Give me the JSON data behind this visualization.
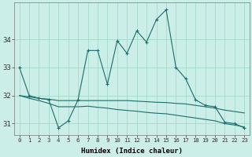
{
  "xlabel": "Humidex (Indice chaleur)",
  "background_color": "#cceee8",
  "grid_color": "#aaddcc",
  "line_color": "#1a6e6e",
  "hours": [
    0,
    1,
    2,
    3,
    4,
    5,
    6,
    7,
    8,
    9,
    10,
    11,
    12,
    13,
    14,
    15,
    16,
    17,
    18,
    19,
    20,
    21,
    22,
    23
  ],
  "y_main": [
    33.0,
    32.0,
    31.9,
    31.85,
    30.85,
    31.1,
    31.85,
    33.6,
    33.6,
    32.4,
    33.95,
    33.5,
    34.3,
    33.9,
    34.7,
    35.05,
    33.0,
    32.6,
    31.85,
    31.65,
    31.6,
    31.05,
    31.0,
    30.85
  ],
  "y_upper": [
    32.0,
    31.95,
    31.9,
    31.87,
    31.82,
    31.82,
    31.82,
    31.82,
    31.82,
    31.82,
    31.82,
    31.82,
    31.8,
    31.78,
    31.76,
    31.75,
    31.72,
    31.7,
    31.65,
    31.6,
    31.55,
    31.48,
    31.43,
    31.38
  ],
  "y_lower": [
    32.0,
    31.9,
    31.82,
    31.72,
    31.6,
    31.6,
    31.6,
    31.62,
    31.58,
    31.55,
    31.5,
    31.47,
    31.44,
    31.4,
    31.37,
    31.35,
    31.3,
    31.25,
    31.2,
    31.15,
    31.1,
    31.0,
    30.95,
    30.88
  ],
  "ylim": [
    30.6,
    35.3
  ],
  "yticks": [
    31,
    32,
    33,
    34
  ],
  "xlim": [
    -0.5,
    23.5
  ]
}
